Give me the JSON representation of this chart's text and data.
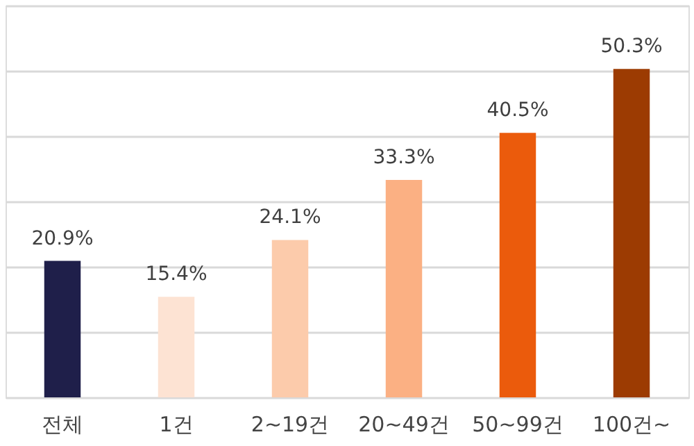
{
  "chart_data": {
    "type": "bar",
    "categories": [
      "전체",
      "1건",
      "2~19건",
      "20~49건",
      "50~99건",
      "100건~"
    ],
    "values": [
      20.9,
      15.4,
      24.1,
      33.3,
      40.5,
      50.3
    ],
    "colors": [
      "#1f1f4a",
      "#fde3d3",
      "#fccbab",
      "#fbb083",
      "#eb5b0c",
      "#9c3b02"
    ],
    "value_labels": [
      "20.9%",
      "15.4%",
      "24.1%",
      "33.3%",
      "40.5%",
      "50.3%"
    ],
    "ylim": [
      0,
      60
    ],
    "yticks": [
      {
        "value": 0,
        "label": null
      },
      {
        "value": 10,
        "label": null
      },
      {
        "value": 20,
        "label": null
      },
      {
        "value": 30,
        "label": null
      },
      {
        "value": 40,
        "label": null
      },
      {
        "value": 50,
        "label": null
      },
      {
        "value": 60,
        "label": null
      }
    ],
    "grid": "y",
    "tick_labels": "x"
  }
}
